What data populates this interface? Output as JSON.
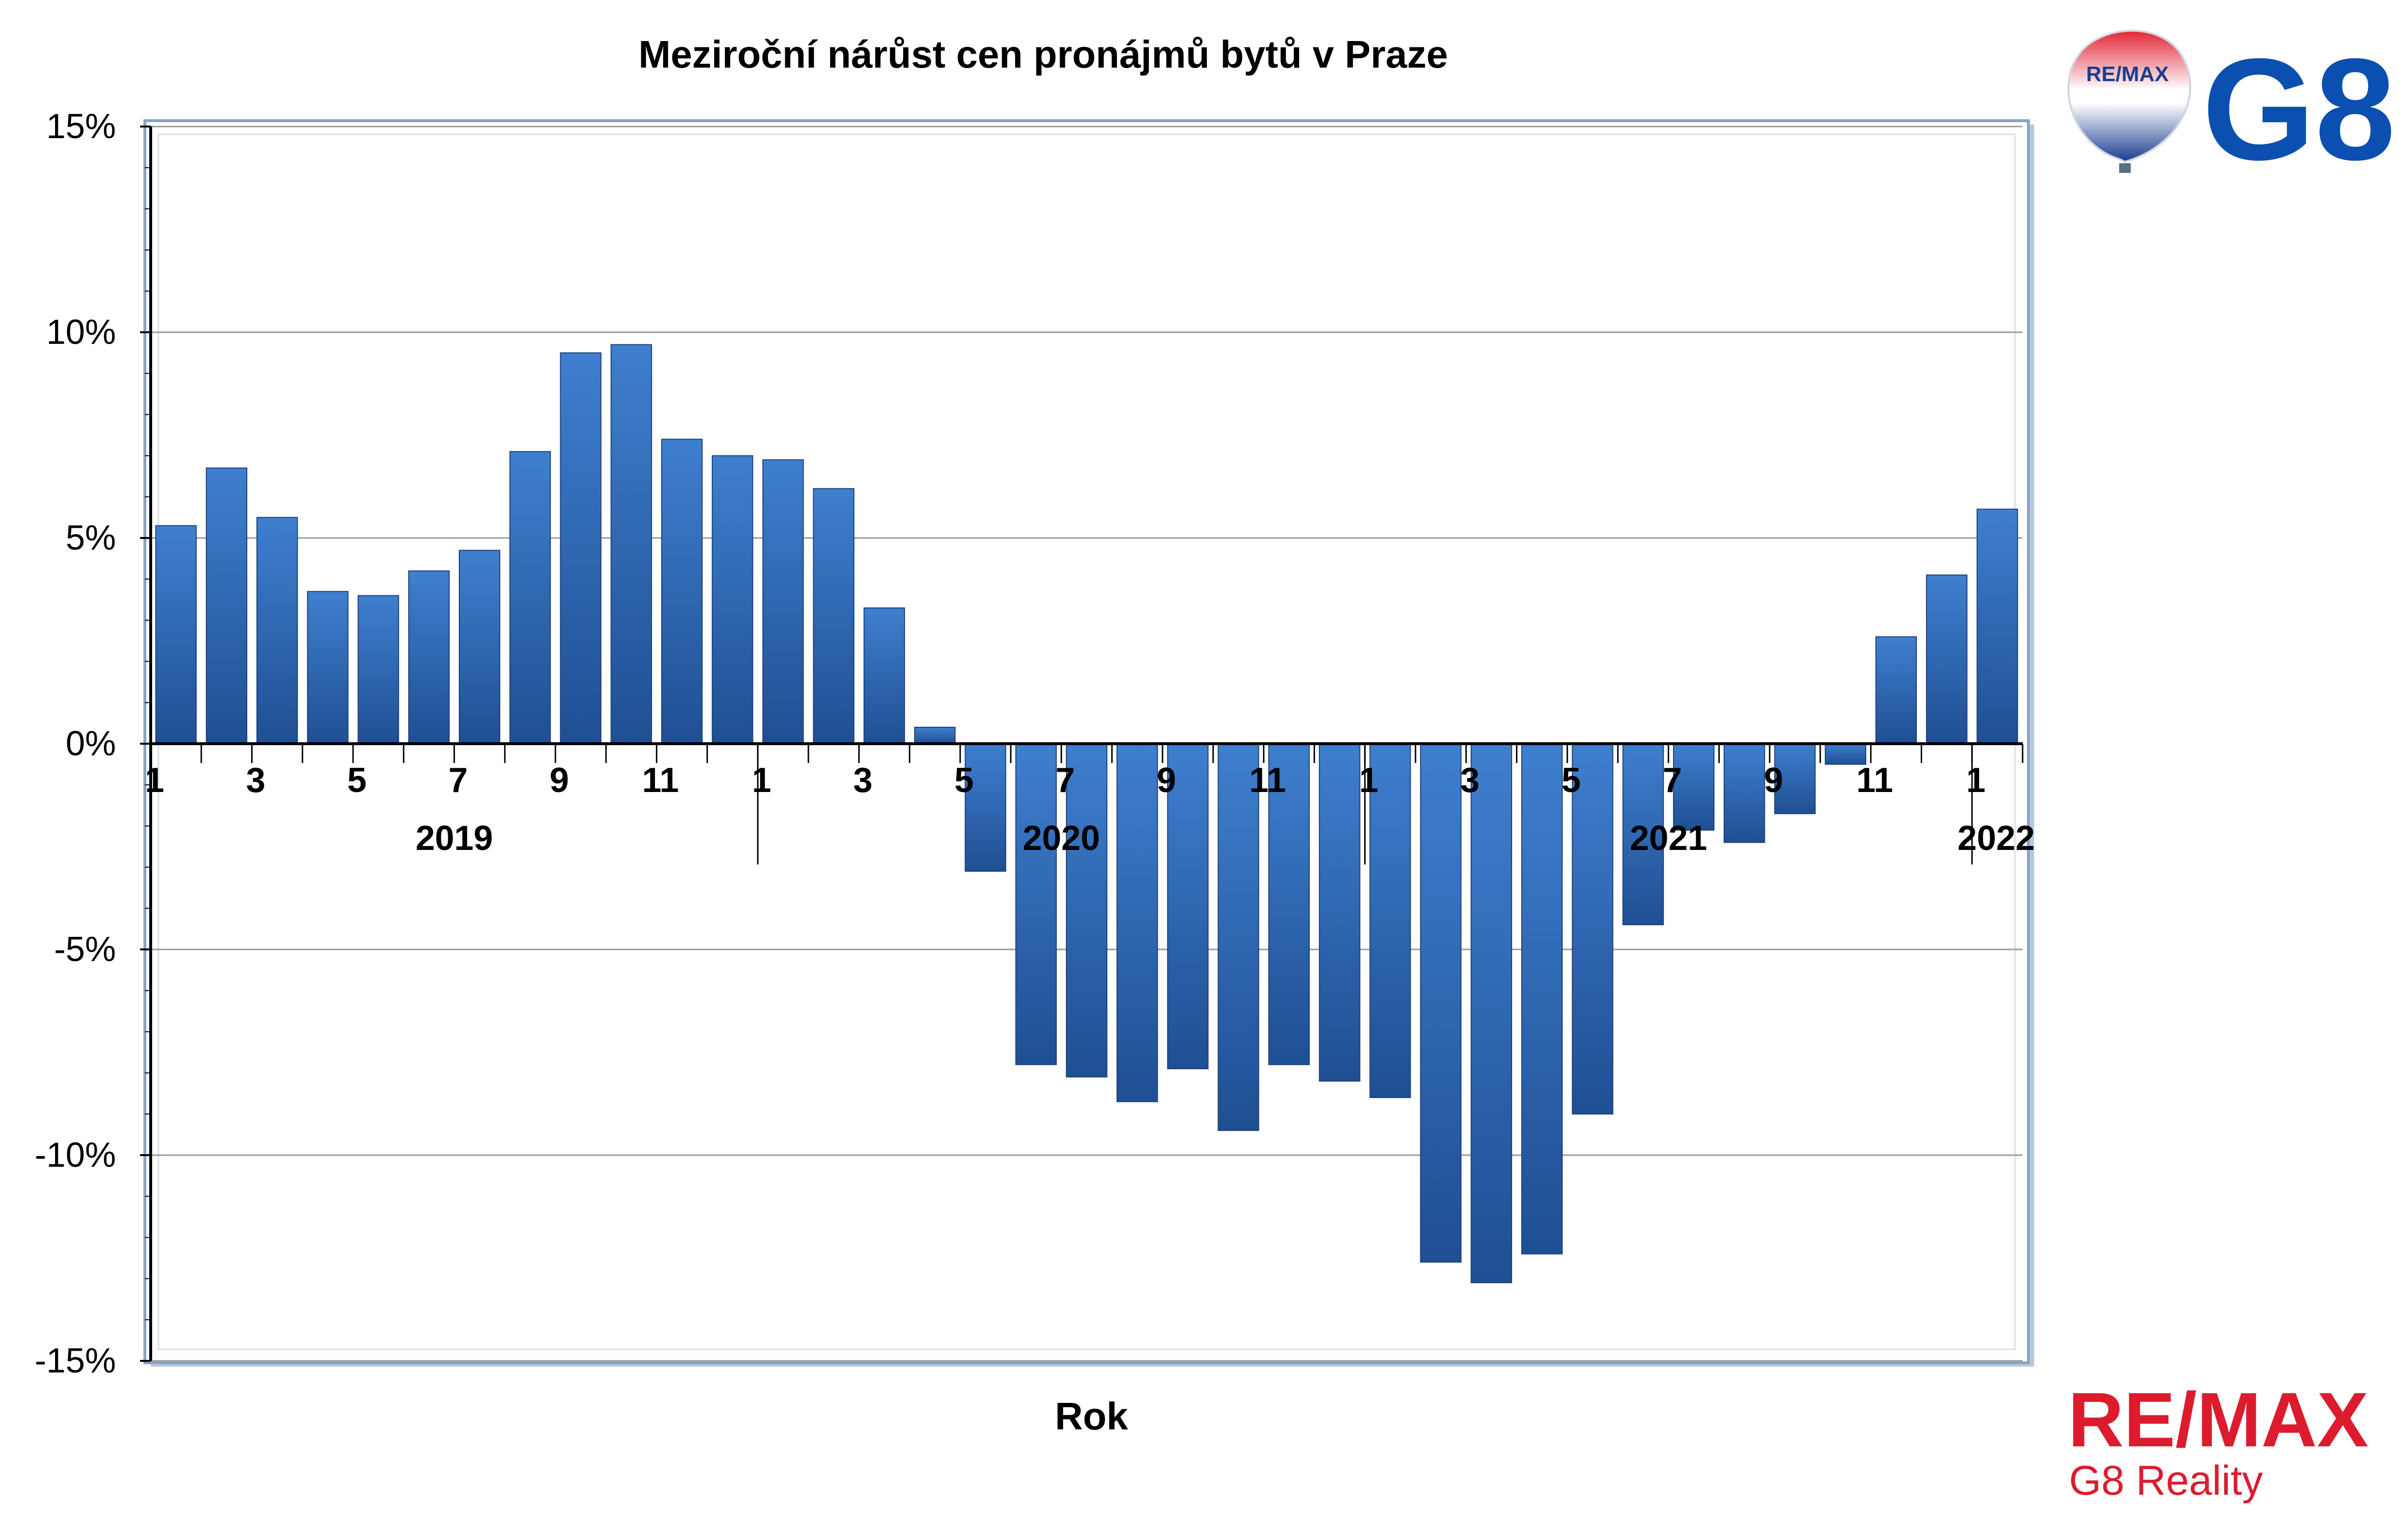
{
  "chart_data": {
    "type": "bar",
    "title": "Meziroční nárůst cen pronájmů bytů v Praze",
    "xlabel": "Rok",
    "ylabel": "",
    "ylim": [
      -0.15,
      0.15
    ],
    "yticks": [
      0.15,
      0.1,
      0.05,
      0.0,
      -0.05,
      -0.1,
      -0.15
    ],
    "ytick_labels": [
      "15%",
      "10%",
      "5%",
      "0%",
      "-5%",
      "-10%",
      "-15%"
    ],
    "month_ticks": [
      "1",
      "3",
      "5",
      "7",
      "9",
      "11",
      "1",
      "3",
      "5",
      "7",
      "9",
      "11",
      "1",
      "3",
      "5",
      "7",
      "9",
      "11",
      "1"
    ],
    "year_labels": [
      "2019",
      "2020",
      "2021",
      "2022"
    ],
    "categories": [
      "2019-1",
      "2019-2",
      "2019-3",
      "2019-4",
      "2019-5",
      "2019-6",
      "2019-7",
      "2019-8",
      "2019-9",
      "2019-10",
      "2019-11",
      "2019-12",
      "2020-1",
      "2020-2",
      "2020-3",
      "2020-4",
      "2020-5",
      "2020-6",
      "2020-7",
      "2020-8",
      "2020-9",
      "2020-10",
      "2020-11",
      "2020-12",
      "2021-1",
      "2021-2",
      "2021-3",
      "2021-4",
      "2021-5",
      "2021-6",
      "2021-7",
      "2021-8",
      "2021-9",
      "2021-10",
      "2021-11",
      "2021-12",
      "2022-1"
    ],
    "values": [
      0.053,
      0.067,
      0.055,
      0.037,
      0.036,
      0.042,
      0.047,
      0.071,
      0.095,
      0.097,
      0.074,
      0.07,
      0.069,
      0.062,
      0.033,
      0.004,
      -0.031,
      -0.078,
      -0.081,
      -0.087,
      -0.079,
      -0.094,
      -0.078,
      -0.082,
      -0.086,
      -0.126,
      -0.131,
      -0.124,
      -0.09,
      -0.044,
      -0.021,
      -0.024,
      -0.017,
      -0.005,
      0.026,
      0.041,
      0.057
    ],
    "grid": true,
    "legend": "none",
    "bar_color_top": "#3f7fcf",
    "bar_color_bottom": "#1f4f93"
  },
  "branding": {
    "balloon_text": "RE/MAX",
    "g8_text": "G8",
    "footer_main": "RE/MAX",
    "footer_sub": "G8 Reality",
    "red": "#dc1c2e",
    "blue": "#0b4fb0"
  }
}
